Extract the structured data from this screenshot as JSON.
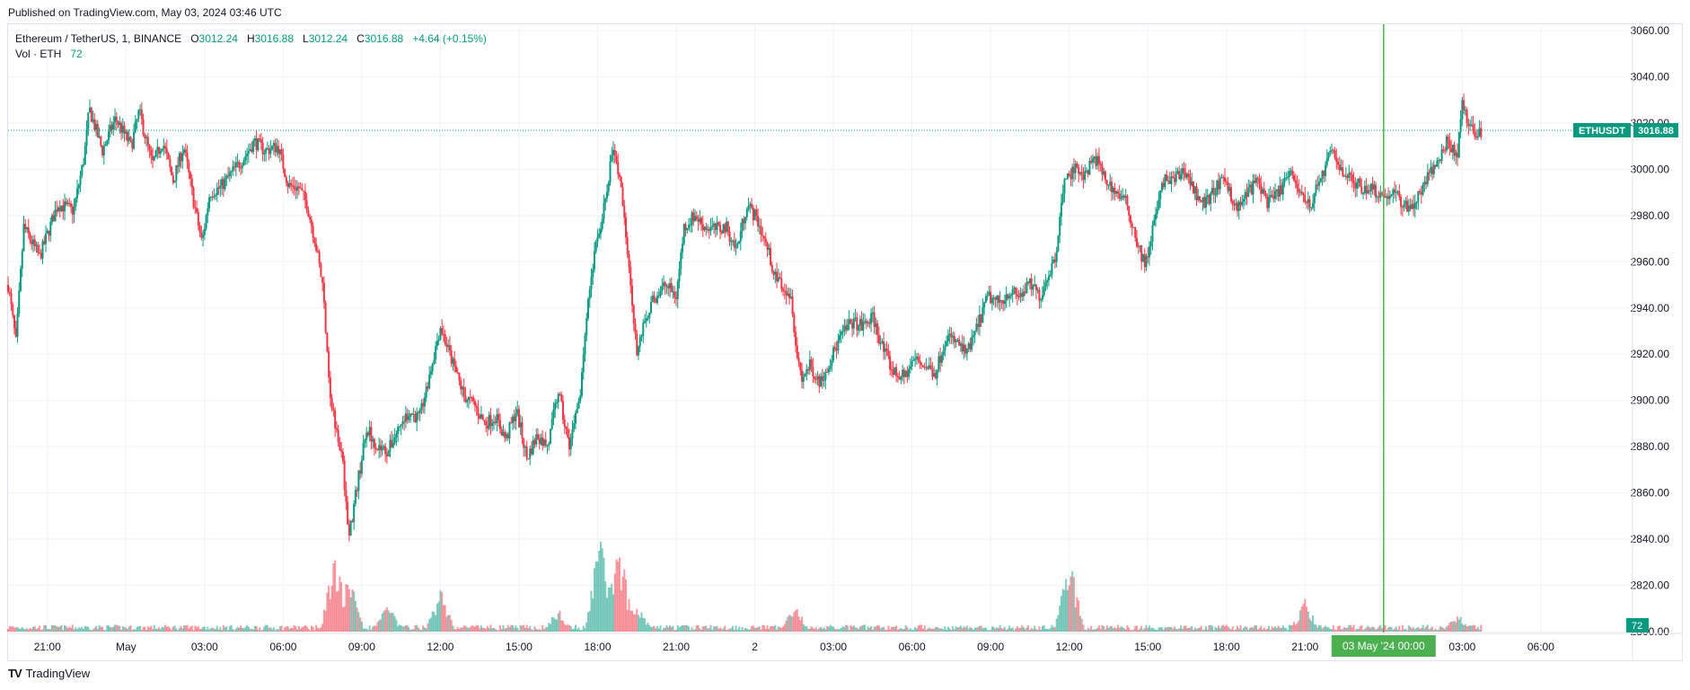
{
  "published": "Published on TradingView.com, May 03, 2024 03:46 UTC",
  "footer": {
    "brand": "TradingView",
    "logo": "TV"
  },
  "legend": {
    "symbol": "Ethereum / TetherUS, 1, BINANCE",
    "o_label": "O",
    "o": "3012.24",
    "h_label": "H",
    "h": "3016.88",
    "l_label": "L",
    "l": "3012.24",
    "c_label": "C",
    "c": "3016.88",
    "change": "+4.64 (+0.15%)",
    "vol_label": "Vol · ETH",
    "vol": "72"
  },
  "colors": {
    "up": "#089981",
    "down": "#f23645",
    "grid": "#f0f3fa",
    "cursor": "#4caf50"
  },
  "chart_data": {
    "type": "candlestick",
    "title": "Ethereum / TetherUS, 1, BINANCE",
    "ylim": [
      2800,
      3060
    ],
    "y_ticks": [
      "3060.00",
      "3040.00",
      "3020.00",
      "3000.00",
      "2980.00",
      "2960.00",
      "2940.00",
      "2920.00",
      "2900.00",
      "2880.00",
      "2860.00",
      "2840.00",
      "2820.00",
      "2800.00"
    ],
    "x_ticks": [
      "21:00",
      "May",
      "03:00",
      "06:00",
      "09:00",
      "12:00",
      "15:00",
      "18:00",
      "21:00",
      "2",
      "03:00",
      "06:00",
      "09:00",
      "12:00",
      "15:00",
      "18:00",
      "21:00",
      "03:00",
      "06:00"
    ],
    "x_tick_hours": [
      -3,
      0,
      3,
      6,
      9,
      12,
      15,
      18,
      21,
      24,
      27,
      30,
      33,
      36,
      39,
      42,
      45,
      51,
      54
    ],
    "x_range_hours": [
      -4.5,
      57.5
    ],
    "data_end_hour": 51.77,
    "price_path": [
      [
        -4.5,
        2950
      ],
      [
        -4.2,
        2925
      ],
      [
        -3.9,
        2975
      ],
      [
        -3.3,
        2962
      ],
      [
        -2.6,
        2985
      ],
      [
        -2.0,
        2982
      ],
      [
        -1.6,
        3005
      ],
      [
        -1.4,
        3026
      ],
      [
        -0.9,
        3008
      ],
      [
        -0.4,
        3022
      ],
      [
        0.2,
        3010
      ],
      [
        0.5,
        3025
      ],
      [
        1.0,
        3002
      ],
      [
        1.4,
        3012
      ],
      [
        1.8,
        2995
      ],
      [
        2.2,
        3010
      ],
      [
        2.6,
        2985
      ],
      [
        2.9,
        2968
      ],
      [
        3.2,
        2990
      ],
      [
        3.6,
        2992
      ],
      [
        4.0,
        2998
      ],
      [
        4.5,
        3005
      ],
      [
        4.9,
        3012
      ],
      [
        5.3,
        3008
      ],
      [
        5.8,
        3010
      ],
      [
        6.2,
        2993
      ],
      [
        6.6,
        2992
      ],
      [
        6.9,
        2985
      ],
      [
        7.2,
        2970
      ],
      [
        7.5,
        2950
      ],
      [
        7.7,
        2920
      ],
      [
        7.8,
        2900
      ],
      [
        8.1,
        2885
      ],
      [
        8.3,
        2870
      ],
      [
        8.5,
        2840
      ],
      [
        8.8,
        2862
      ],
      [
        9.2,
        2888
      ],
      [
        9.6,
        2880
      ],
      [
        10.0,
        2878
      ],
      [
        10.4,
        2888
      ],
      [
        10.8,
        2895
      ],
      [
        11.2,
        2892
      ],
      [
        11.6,
        2912
      ],
      [
        12.0,
        2932
      ],
      [
        12.5,
        2915
      ],
      [
        12.9,
        2902
      ],
      [
        13.3,
        2898
      ],
      [
        13.7,
        2890
      ],
      [
        14.1,
        2893
      ],
      [
        14.5,
        2883
      ],
      [
        14.9,
        2896
      ],
      [
        15.3,
        2875
      ],
      [
        15.7,
        2885
      ],
      [
        16.1,
        2880
      ],
      [
        16.5,
        2904
      ],
      [
        16.9,
        2880
      ],
      [
        17.3,
        2898
      ],
      [
        17.6,
        2940
      ],
      [
        17.9,
        2965
      ],
      [
        18.1,
        2975
      ],
      [
        18.3,
        2988
      ],
      [
        18.6,
        3010
      ],
      [
        18.9,
        2990
      ],
      [
        19.2,
        2960
      ],
      [
        19.5,
        2920
      ],
      [
        19.8,
        2935
      ],
      [
        20.2,
        2945
      ],
      [
        20.6,
        2950
      ],
      [
        21.0,
        2945
      ],
      [
        21.3,
        2975
      ],
      [
        21.7,
        2980
      ],
      [
        22.1,
        2975
      ],
      [
        22.5,
        2974
      ],
      [
        22.9,
        2975
      ],
      [
        23.3,
        2965
      ],
      [
        23.7,
        2985
      ],
      [
        24.1,
        2978
      ],
      [
        24.5,
        2965
      ],
      [
        24.8,
        2952
      ],
      [
        25.1,
        2950
      ],
      [
        25.4,
        2945
      ],
      [
        25.6,
        2920
      ],
      [
        25.8,
        2910
      ],
      [
        26.1,
        2915
      ],
      [
        26.5,
        2908
      ],
      [
        26.9,
        2918
      ],
      [
        27.3,
        2928
      ],
      [
        27.7,
        2934
      ],
      [
        28.1,
        2932
      ],
      [
        28.5,
        2936
      ],
      [
        28.9,
        2922
      ],
      [
        29.3,
        2912
      ],
      [
        29.7,
        2910
      ],
      [
        30.1,
        2918
      ],
      [
        30.5,
        2915
      ],
      [
        30.9,
        2912
      ],
      [
        31.3,
        2928
      ],
      [
        31.7,
        2925
      ],
      [
        32.1,
        2920
      ],
      [
        32.5,
        2932
      ],
      [
        32.9,
        2945
      ],
      [
        33.3,
        2942
      ],
      [
        33.7,
        2947
      ],
      [
        34.1,
        2945
      ],
      [
        34.5,
        2950
      ],
      [
        34.9,
        2945
      ],
      [
        35.2,
        2955
      ],
      [
        35.5,
        2962
      ],
      [
        35.8,
        2995
      ],
      [
        36.2,
        3000
      ],
      [
        36.6,
        2998
      ],
      [
        37.0,
        3005
      ],
      [
        37.4,
        2995
      ],
      [
        37.8,
        2990
      ],
      [
        38.2,
        2985
      ],
      [
        38.6,
        2968
      ],
      [
        38.9,
        2958
      ],
      [
        39.2,
        2975
      ],
      [
        39.6,
        2995
      ],
      [
        40.0,
        2995
      ],
      [
        40.4,
        3000
      ],
      [
        40.8,
        2990
      ],
      [
        41.2,
        2985
      ],
      [
        41.6,
        2992
      ],
      [
        42.0,
        2995
      ],
      [
        42.4,
        2982
      ],
      [
        42.8,
        2990
      ],
      [
        43.2,
        2995
      ],
      [
        43.6,
        2985
      ],
      [
        44.0,
        2990
      ],
      [
        44.4,
        2998
      ],
      [
        44.8,
        2990
      ],
      [
        45.2,
        2985
      ],
      [
        45.6,
        2995
      ],
      [
        46.0,
        3008
      ],
      [
        46.4,
        3000
      ],
      [
        46.8,
        2995
      ],
      [
        47.2,
        2992
      ],
      [
        47.6,
        2992
      ],
      [
        48.0,
        2988
      ],
      [
        48.4,
        2990
      ],
      [
        48.8,
        2984
      ],
      [
        49.2,
        2985
      ],
      [
        49.6,
        2995
      ],
      [
        50.0,
        3002
      ],
      [
        50.4,
        3012
      ],
      [
        50.8,
        3005
      ],
      [
        51.0,
        3030
      ],
      [
        51.2,
        3018
      ],
      [
        51.5,
        3015
      ],
      [
        51.8,
        3017
      ]
    ],
    "volume_spikes": [
      [
        8.0,
        0.31
      ],
      [
        8.5,
        0.24
      ],
      [
        10.0,
        0.11
      ],
      [
        12.0,
        0.17
      ],
      [
        16.5,
        0.09
      ],
      [
        18.1,
        0.38
      ],
      [
        18.8,
        0.36
      ],
      [
        19.5,
        0.12
      ],
      [
        25.5,
        0.11
      ],
      [
        36.0,
        0.29
      ],
      [
        45.0,
        0.12
      ],
      [
        50.8,
        0.07
      ]
    ],
    "last_price": {
      "symbol": "ETHUSDT",
      "value": "3016.88",
      "price": 3016.88
    },
    "last_volume": "72",
    "cursor": {
      "label": "03 May '24  00:00",
      "hour": 48
    }
  }
}
